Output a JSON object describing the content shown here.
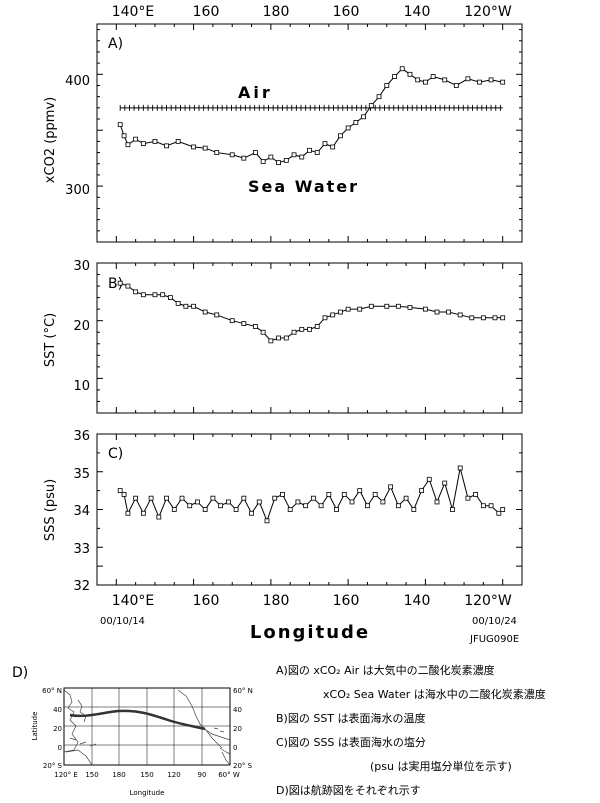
{
  "top_axis": [
    "140°E",
    "160",
    "180",
    "160",
    "140",
    "120°W"
  ],
  "charts": {
    "A": {
      "panel_label": "A)",
      "ylabel": "xCO2 (ppmv)",
      "yticks": [
        "300",
        "400"
      ],
      "air_label": "Air",
      "sea_label": "Sea Water"
    },
    "B": {
      "panel_label": "B)",
      "ylabel": "SST (°C)",
      "yticks": [
        "10",
        "20",
        "30"
      ]
    },
    "C": {
      "panel_label": "C)",
      "ylabel": "SSS (psu)",
      "yticks": [
        "32",
        "33",
        "34",
        "35",
        "36"
      ]
    }
  },
  "bottom_axis": [
    "140°E",
    "160",
    "180",
    "160",
    "140",
    "120°W"
  ],
  "start_date": "00/10/14",
  "end_date": "00/10/24",
  "xlabel": "Longitude",
  "figure_code": "JFUG090E",
  "map": {
    "panel_label": "D)",
    "ylabel": "Latitude",
    "xlabel": "Longitude",
    "lat_labels_left": [
      "60° N",
      "40",
      "20",
      "0",
      "20° S"
    ],
    "lat_labels_right": [
      "60° N",
      "40",
      "20",
      "0",
      "20° S"
    ],
    "lon_labels": [
      "120° E",
      "150",
      "180",
      "150",
      "120",
      "90",
      "60° W"
    ]
  },
  "legend": {
    "line1": "A)図の xCO₂ Air は大気中の二酸化炭素濃度",
    "line2": "xCO₂ Sea Water は海水中の二酸化炭素濃度",
    "line3": "B)図の SST は表面海水の温度",
    "line4": "C)図の SSS は表面海水の塩分",
    "line5": "(psu は実用塩分単位を示す)",
    "line6": "D)図は航跡図をそれぞれ示す"
  },
  "chart_data": [
    {
      "type": "line",
      "title": "A)",
      "xlabel": "Longitude",
      "ylabel": "xCO2 (ppmv)",
      "x_note": "x = degrees east longitude (140°E ... 240 = 120°W)",
      "xlim": [
        135,
        245
      ],
      "ylim": [
        250,
        445
      ],
      "series": [
        {
          "name": "Air",
          "x": [
            141,
            150,
            160,
            170,
            180,
            190,
            200,
            210,
            220,
            230,
            240
          ],
          "y": [
            370,
            370,
            370,
            370,
            370,
            370,
            370,
            370,
            370,
            370,
            370
          ]
        },
        {
          "name": "Sea Water",
          "x": [
            141,
            142,
            143,
            145,
            147,
            150,
            153,
            156,
            160,
            163,
            166,
            170,
            173,
            176,
            178,
            180,
            182,
            184,
            186,
            188,
            190,
            192,
            194,
            196,
            198,
            200,
            202,
            204,
            206,
            208,
            210,
            212,
            214,
            216,
            218,
            220,
            222,
            225,
            228,
            231,
            234,
            237,
            240
          ],
          "y": [
            355,
            345,
            337,
            342,
            338,
            340,
            336,
            340,
            335,
            334,
            330,
            328,
            325,
            330,
            322,
            326,
            321,
            323,
            328,
            326,
            332,
            330,
            338,
            335,
            345,
            352,
            357,
            362,
            372,
            380,
            390,
            398,
            405,
            400,
            395,
            393,
            398,
            395,
            390,
            396,
            393,
            395,
            393
          ]
        }
      ]
    },
    {
      "type": "line",
      "title": "B)",
      "xlabel": "Longitude",
      "ylabel": "SST (°C)",
      "xlim": [
        135,
        245
      ],
      "ylim": [
        4,
        30
      ],
      "series": [
        {
          "name": "SST",
          "x": [
            141,
            143,
            145,
            147,
            150,
            152,
            154,
            156,
            158,
            160,
            163,
            166,
            170,
            173,
            176,
            178,
            180,
            182,
            184,
            186,
            188,
            190,
            192,
            194,
            196,
            198,
            200,
            203,
            206,
            210,
            213,
            216,
            220,
            223,
            226,
            229,
            232,
            235,
            238,
            240
          ],
          "y": [
            26.5,
            26,
            25,
            24.5,
            24.5,
            24.5,
            24,
            23,
            22.5,
            22.5,
            21.5,
            21,
            20,
            19.5,
            19,
            18,
            16.5,
            17,
            17,
            18,
            18.5,
            18.5,
            19,
            20.5,
            21,
            21.5,
            22,
            22,
            22.5,
            22.5,
            22.5,
            22.3,
            22,
            21.5,
            21.5,
            21,
            20.5,
            20.5,
            20.5,
            20.5
          ]
        }
      ]
    },
    {
      "type": "line",
      "title": "C)",
      "xlabel": "Longitude",
      "ylabel": "SSS (psu)",
      "xlim": [
        135,
        245
      ],
      "ylim": [
        32,
        36
      ],
      "series": [
        {
          "name": "SSS",
          "x": [
            141,
            142,
            143,
            145,
            147,
            149,
            151,
            153,
            155,
            157,
            159,
            161,
            163,
            165,
            167,
            169,
            171,
            173,
            175,
            177,
            179,
            181,
            183,
            185,
            187,
            189,
            191,
            193,
            195,
            197,
            199,
            201,
            203,
            205,
            207,
            209,
            211,
            213,
            215,
            217,
            219,
            221,
            223,
            225,
            227,
            229,
            231,
            233,
            235,
            237,
            239,
            240
          ],
          "y": [
            34.5,
            34.4,
            33.9,
            34.3,
            33.9,
            34.3,
            33.8,
            34.3,
            34.0,
            34.3,
            34.1,
            34.2,
            34.0,
            34.3,
            34.1,
            34.2,
            34.0,
            34.3,
            33.9,
            34.2,
            33.7,
            34.3,
            34.4,
            34.0,
            34.2,
            34.1,
            34.3,
            34.1,
            34.4,
            34.0,
            34.4,
            34.2,
            34.5,
            34.1,
            34.4,
            34.2,
            34.6,
            34.1,
            34.3,
            34.0,
            34.5,
            34.8,
            34.2,
            34.7,
            34.0,
            35.1,
            34.3,
            34.4,
            34.1,
            34.1,
            33.9,
            34.0
          ]
        }
      ]
    }
  ]
}
